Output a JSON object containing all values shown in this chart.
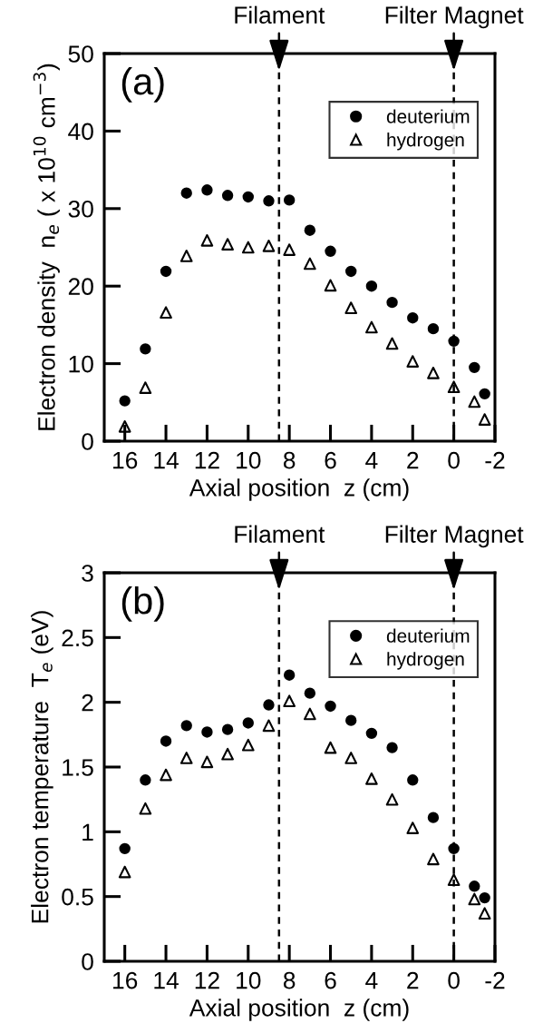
{
  "chart_data": [
    {
      "type": "scatter",
      "xlabel": "Axial position  z (cm)",
      "ylabel": "Electron density  n$_{e}$ ( x 10$^{10}$ cm$^{−3}$)",
      "x": [
        16,
        15,
        14,
        13,
        12,
        11,
        10,
        9,
        8,
        7,
        6,
        5,
        4,
        3,
        2,
        1,
        0,
        -1,
        -1.5
      ],
      "series": [
        {
          "name": "deuterium",
          "color": "#000000",
          "marker": "circle",
          "values": [
            5.2,
            11.9,
            21.9,
            32.0,
            32.4,
            31.7,
            31.5,
            31.0,
            31.1,
            27.2,
            24.5,
            21.9,
            20.0,
            17.9,
            15.9,
            14.5,
            12.9,
            9.5,
            6.1
          ]
        },
        {
          "name": "hydrogen",
          "color": "#000000",
          "marker": "triangle",
          "values": [
            1.9,
            6.9,
            16.6,
            23.9,
            25.9,
            25.4,
            25.0,
            25.2,
            24.7,
            22.9,
            20.1,
            17.2,
            14.7,
            12.6,
            10.3,
            8.8,
            7.0,
            5.1,
            2.8
          ]
        }
      ],
      "xlim": [
        17,
        -2
      ],
      "xticks": [
        16,
        14,
        12,
        10,
        8,
        6,
        4,
        2,
        0,
        -2
      ],
      "ylim": [
        0,
        50
      ],
      "yticks": [
        0,
        10,
        20,
        30,
        40,
        50
      ],
      "ref_lines": [
        {
          "axis": "x",
          "value": 8.5,
          "label": "Filament",
          "color": "#000000",
          "line_style": "dashed"
        },
        {
          "axis": "x",
          "value": 0,
          "label": "Filter Magnet",
          "color": "#000000",
          "line_style": "dashed"
        }
      ],
      "annotations": [
        "(a)"
      ],
      "legend": "top right",
      "grid": false
    },
    {
      "type": "scatter",
      "xlabel": "Axial position  z (cm)",
      "ylabel": "Electron temperature  T$_{e}$ (eV)",
      "x": [
        16,
        15,
        14,
        13,
        12,
        11,
        10,
        9,
        8,
        7,
        6,
        5,
        4,
        3,
        2,
        1,
        0,
        -1,
        -1.5
      ],
      "series": [
        {
          "name": "deuterium",
          "color": "#000000",
          "marker": "circle",
          "values": [
            0.87,
            1.4,
            1.7,
            1.82,
            1.77,
            1.79,
            1.84,
            1.98,
            2.21,
            2.07,
            1.97,
            1.86,
            1.76,
            1.65,
            1.4,
            1.11,
            0.87,
            0.58,
            0.49
          ]
        },
        {
          "name": "hydrogen",
          "color": "#000000",
          "marker": "triangle",
          "values": [
            0.69,
            1.18,
            1.44,
            1.57,
            1.54,
            1.6,
            1.67,
            1.82,
            2.01,
            1.91,
            1.65,
            1.57,
            1.41,
            1.25,
            1.03,
            0.79,
            0.63,
            0.48,
            0.37
          ]
        }
      ],
      "xlim": [
        17,
        -2
      ],
      "xticks": [
        16,
        14,
        12,
        10,
        8,
        6,
        4,
        2,
        0,
        -2
      ],
      "ylim": [
        0,
        3
      ],
      "yticks": [
        0,
        0.5,
        1,
        1.5,
        2,
        2.5,
        3
      ],
      "ref_lines": [
        {
          "axis": "x",
          "value": 8.5,
          "label": "Filament",
          "color": "#000000",
          "line_style": "dashed"
        },
        {
          "axis": "x",
          "value": 0,
          "label": "Filter Magnet",
          "color": "#000000",
          "line_style": "dashed"
        }
      ],
      "annotations": [
        "(b)"
      ],
      "legend": "top right",
      "grid": false
    }
  ]
}
